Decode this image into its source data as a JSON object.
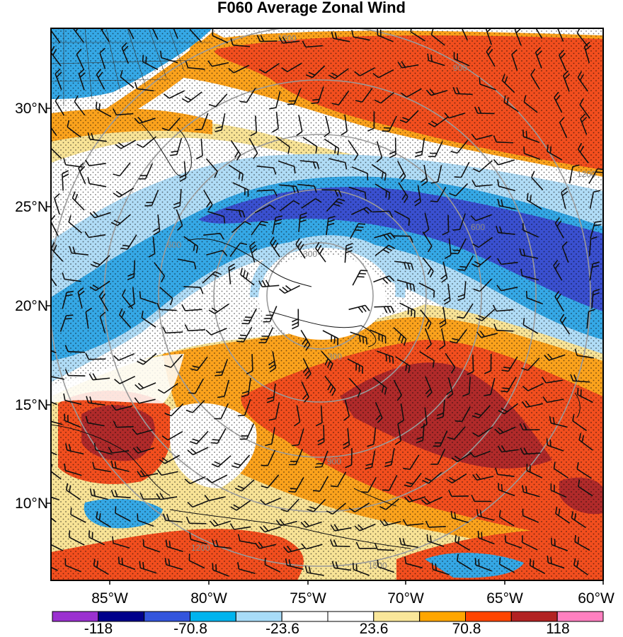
{
  "title": "F060 Average Zonal Wind",
  "lat_labels": [
    "30°N",
    "25°N",
    "20°N",
    "15°N",
    "10°N"
  ],
  "lon_labels": [
    "85°W",
    "80°W",
    "75°W",
    "70°W",
    "65°W",
    "60°W"
  ],
  "range_ring_labels": [
    "300",
    "600",
    "900",
    "1200",
    "1500"
  ],
  "colorbar": {
    "labels": [
      "-118",
      "-70.8",
      "-23.6",
      "23.6",
      "70.8",
      "118"
    ],
    "colors": [
      "#9b30d0",
      "#00008b",
      "#3355dd",
      "#00b4ee",
      "#a8dcf8",
      "#ffffff",
      "#ffffff",
      "#fae79a",
      "#ffa600",
      "#ff4500",
      "#b22222",
      "#ff80c0"
    ]
  },
  "palette": {
    "deep_blue": "#3a50d0",
    "blue": "#35a8e6",
    "light_blue": "#b0dcf6",
    "white": "#ffffff",
    "yellow": "#f8e396",
    "orange": "#fba21c",
    "red_orange": "#f24e1e",
    "dark_red": "#b02a2a"
  },
  "chart_data": {
    "type": "heatmap",
    "title": "F060 Average Zonal Wind",
    "lon_range": [
      -88,
      -60
    ],
    "lat_range": [
      6,
      34
    ],
    "lon_ticks": [
      -85,
      -80,
      -75,
      -70,
      -65,
      -60
    ],
    "lat_ticks": [
      30,
      25,
      20,
      15,
      10
    ],
    "colorbar_ticks": [
      -118,
      -70.8,
      -23.6,
      23.6,
      70.8,
      118
    ],
    "features": [
      "filled zonal wind contours",
      "wind barbs",
      "stippling",
      "range rings labelled 300-1500"
    ]
  }
}
